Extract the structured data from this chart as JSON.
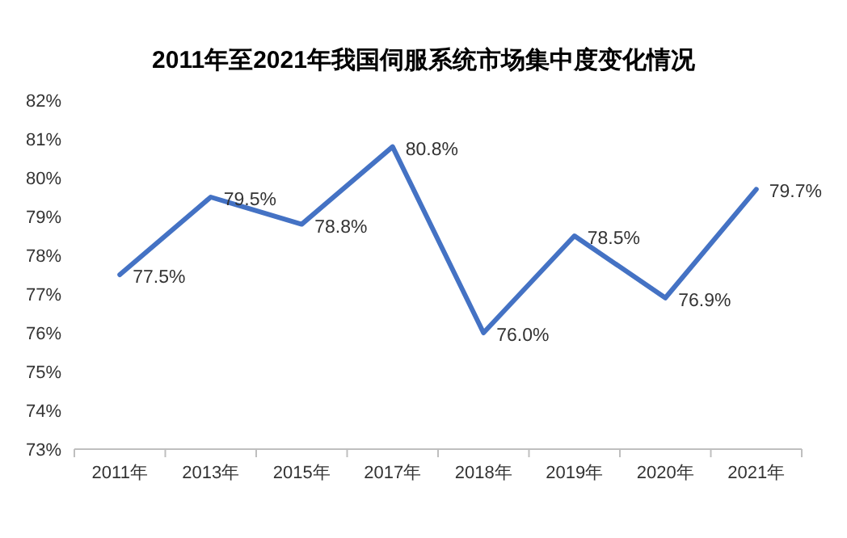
{
  "chart_data": {
    "type": "line",
    "title": "2011年至2021年我国伺服系统市场集中度变化情况",
    "categories": [
      "2011年",
      "2013年",
      "2015年",
      "2017年",
      "2018年",
      "2019年",
      "2020年",
      "2021年"
    ],
    "series": [
      {
        "color": "#4472c4",
        "values": [
          77.5,
          79.5,
          78.8,
          80.8,
          76.0,
          78.5,
          76.9,
          79.7
        ],
        "value_labels": [
          "77.5%",
          "79.5%",
          "78.8%",
          "80.8%",
          "76.0%",
          "78.5%",
          "76.9%",
          "79.7%"
        ]
      }
    ],
    "ylim": [
      73,
      82
    ],
    "yticks": [
      {
        "value": 73,
        "label": "73%"
      },
      {
        "value": 74,
        "label": "74%"
      },
      {
        "value": 75,
        "label": "75%"
      },
      {
        "value": 76,
        "label": "76%"
      },
      {
        "value": 77,
        "label": "77%"
      },
      {
        "value": 78,
        "label": "78%"
      },
      {
        "value": 79,
        "label": "79%"
      },
      {
        "value": 80,
        "label": "80%"
      },
      {
        "value": 81,
        "label": "81%"
      },
      {
        "value": 82,
        "label": "82%"
      }
    ],
    "grid": false,
    "marker": "none",
    "line_style": "solid"
  }
}
